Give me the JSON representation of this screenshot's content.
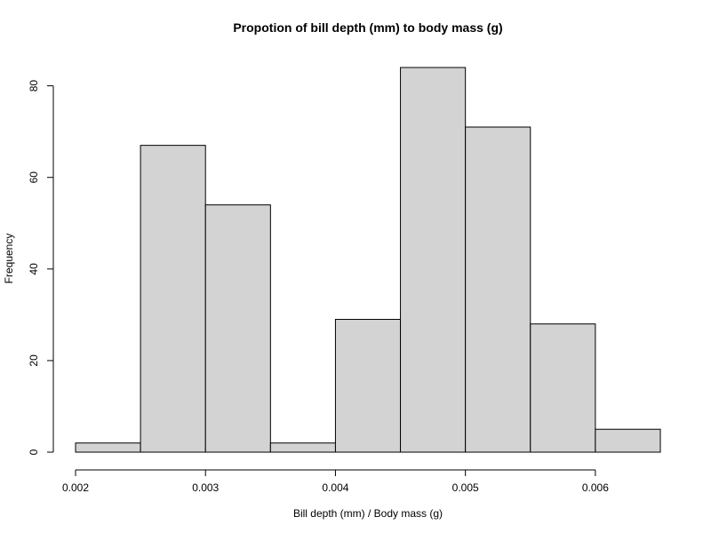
{
  "chart_data": {
    "type": "bar",
    "subtype": "histogram",
    "title": "Propotion of bill depth (mm) to body mass (g)",
    "xlabel": "Bill depth (mm) / Body mass (g)",
    "ylabel": "Frequency",
    "bins": [
      {
        "start": 0.002,
        "end": 0.0025,
        "count": 2
      },
      {
        "start": 0.0025,
        "end": 0.003,
        "count": 67
      },
      {
        "start": 0.003,
        "end": 0.0035,
        "count": 54
      },
      {
        "start": 0.0035,
        "end": 0.004,
        "count": 2
      },
      {
        "start": 0.004,
        "end": 0.0045,
        "count": 29
      },
      {
        "start": 0.0045,
        "end": 0.005,
        "count": 84
      },
      {
        "start": 0.005,
        "end": 0.0055,
        "count": 71
      },
      {
        "start": 0.0055,
        "end": 0.006,
        "count": 28
      },
      {
        "start": 0.006,
        "end": 0.0065,
        "count": 5
      }
    ],
    "x_ticks": [
      "0.002",
      "0.003",
      "0.004",
      "0.005",
      "0.006"
    ],
    "y_ticks": [
      "0",
      "20",
      "40",
      "60",
      "80"
    ],
    "xlim": [
      0.002,
      0.0065
    ],
    "ylim": [
      0,
      84
    ],
    "bar_color": "#d3d3d3",
    "edge_color": "#000000",
    "grid": false,
    "legend": "none"
  }
}
